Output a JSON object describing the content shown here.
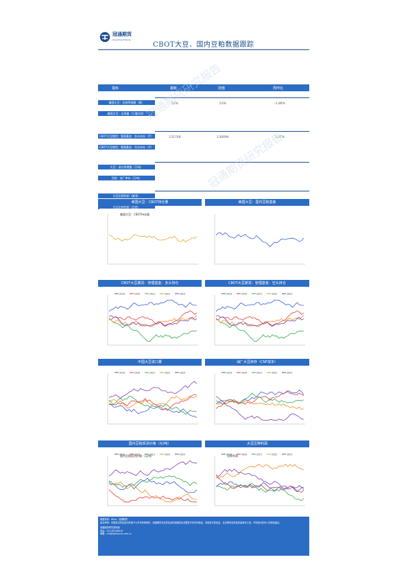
{
  "header": {
    "logo_text": "冠通期货",
    "logo_sub": "Guantong Futures",
    "title": "CBOT大豆、国内豆粕数据跟踪"
  },
  "table": {
    "columns": [
      "指标",
      "最新",
      "前值",
      "周环比"
    ],
    "groups": [
      {
        "rows": [
          {
            "label": "美国大豆：优良率指数（周）",
            "latest": "52%",
            "prev": "53%",
            "change": "-1.89%",
            "change_color": "#555555"
          },
          {
            "label": "美国大豆：压榨量（万蒲式耳）",
            "latest": "",
            "prev": "",
            "change": "",
            "change_color": "#555555"
          }
        ]
      },
      {
        "rows": [
          {
            "label": "CBOT大豆期货：管理基金：多头持仓（手）",
            "latest": "131748",
            "prev": "130094",
            "change": "1.27%",
            "change_color": "#555555"
          },
          {
            "label": "CBOT大豆期货：管理基金：空头持仓（手）",
            "latest": "",
            "prev": "",
            "change": "",
            "change_color": "#555555"
          }
        ]
      },
      {
        "rows": [
          {
            "label": "大豆：进口到港量（万吨）",
            "latest": "",
            "prev": "",
            "change": "",
            "change_color": "#555555"
          },
          {
            "label": "豆粕：油厂库存（万吨）",
            "latest": "",
            "prev": "",
            "change": "",
            "change_color": "#555555"
          }
        ]
      },
      {
        "rows": [
          {
            "label": "大豆压榨利润（美湾）",
            "latest": "",
            "prev": "",
            "change": "",
            "change_color": "#e23a3a"
          },
          {
            "label": "大豆压榨利润（巴西）",
            "latest": "",
            "prev": "",
            "change": "",
            "change_color": "#e23a3a"
          }
        ]
      }
    ]
  },
  "sections": [
    {
      "left": "美国大豆：CBOT持仓量",
      "right": "美国大豆：国内豆粕基差"
    },
    {
      "left": "CBOT大豆期货：管理基金：多头持仓",
      "right": "CBOT大豆期货：管理基金：空头持仓"
    },
    {
      "left": "中国大豆进口量",
      "right": "油厂大豆库存（CNF成本）"
    },
    {
      "left": "国内豆粕现货价格（元/吨）",
      "right": "大豆压榨利润"
    }
  ],
  "charts_inner_titles": {
    "c1": "美国大豆：CBOT持仓量",
    "c7": "国内豆粕现货价格（元/吨）",
    "c8": "压榨利润"
  },
  "legend_years": [
    "2019",
    "2020",
    "2021",
    "2022",
    "2023"
  ],
  "colors": {
    "accent": "#2b6cc4",
    "dark": "#1a4c8c",
    "s1": "#3a5bd9",
    "s2": "#e23a3a",
    "s3": "#2fa84f",
    "s4": "#f28c28",
    "s5": "#7a3fb5",
    "gold": "#e0a82e"
  },
  "footer": {
    "l1": "数据来源：Wind、冠通期货",
    "l2": "免责声明：本报告中的信息均来源于公开可获得资料，冠通期货对这些信息的准确性及完整性不作任何保证。本报告中的信息、意见等均仅供投资者参考之用，不构成对任何人的投资建议。",
    "l3": "冠通期货研究咨询部",
    "l4": "电话：010-85356618",
    "l5": "邮箱：info@gtfutures.com.cn"
  },
  "watermark": "冠通期货研究报告"
}
